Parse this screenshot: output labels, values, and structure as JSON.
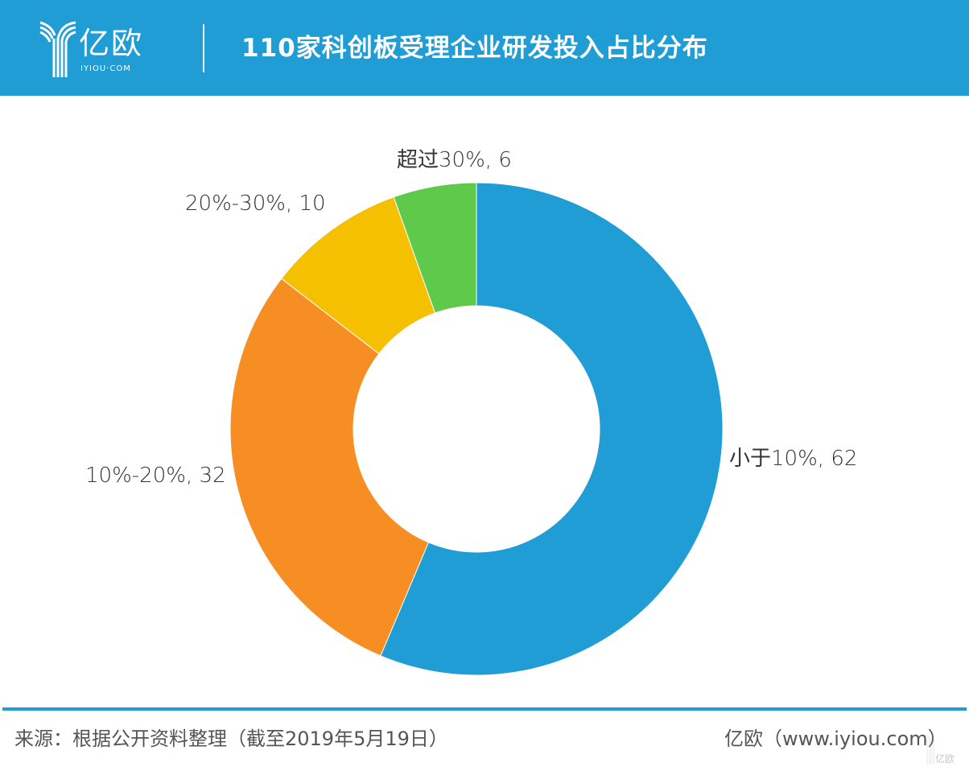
{
  "header": {
    "logo": {
      "cn": "亿欧",
      "en": "IYIOU·COM",
      "icon": "iyiou-y-logo-icon"
    },
    "title": "110家科创板受理企业研发投入占比分布",
    "background_color": "#1f9dd4"
  },
  "chart_data": {
    "type": "pie",
    "subtype": "donut",
    "title": "110家科创板受理企业研发投入占比分布",
    "categories": [
      "小于10%",
      "10%-20%",
      "20%-30%",
      "超过30%"
    ],
    "values": [
      62,
      32,
      10,
      6
    ],
    "colors": [
      "#1f9dd4",
      "#f68e24",
      "#f5c000",
      "#5fc94c"
    ],
    "labels": [
      "小于10%, 62",
      "10%-20%, 32",
      "20%-30%, 10",
      "超过30%, 6"
    ],
    "total": 110,
    "start_angle_deg": 0,
    "direction": "clockwise",
    "legend": "none",
    "inner_radius_ratio": 0.5
  },
  "footer": {
    "source": "来源：根据公开资料整理（截至2019年5月19日）",
    "credit": "亿欧（www.iyiou.com）",
    "watermark": "亿欧"
  }
}
